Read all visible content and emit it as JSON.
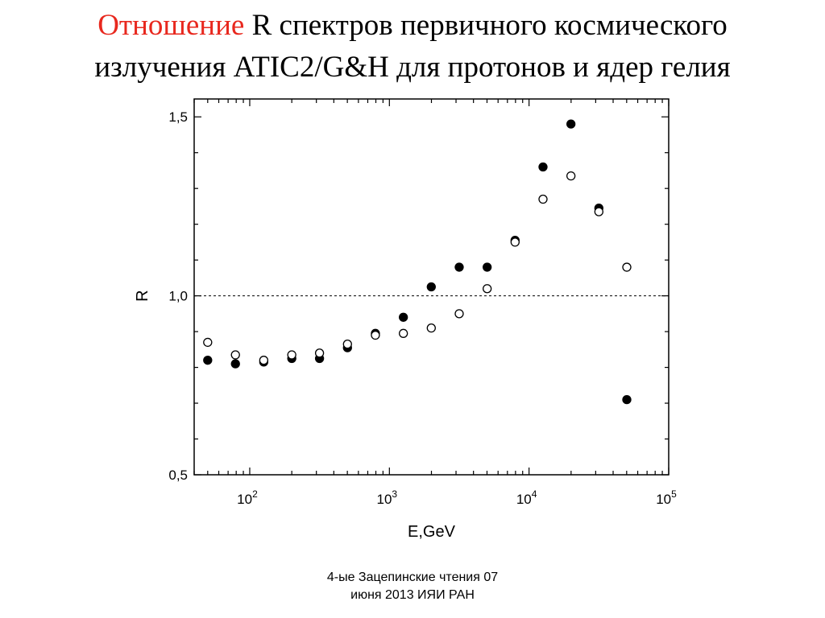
{
  "slide": {
    "title_highlight": "Отношение",
    "title_rest_line1": " R спектров первичного космического",
    "title_line2": "излучения ATIC2/G&H для протонов и ядер гелия",
    "highlight_color": "#e8281e",
    "footer_line1": "4-ые Зацепинские чтения 07",
    "footer_line2": "июня 2013 ИЯИ РАН"
  },
  "chart_data": {
    "type": "scatter",
    "xlabel": "E,GeV",
    "ylabel": "R",
    "x_scale": "log",
    "xlim": [
      40,
      100000
    ],
    "ylim": [
      0.5,
      1.55
    ],
    "x_ticks": [
      {
        "value": 100,
        "base": "10",
        "exp": "2"
      },
      {
        "value": 1000,
        "base": "10",
        "exp": "3"
      },
      {
        "value": 10000,
        "base": "10",
        "exp": "4"
      },
      {
        "value": 100000,
        "base": "10",
        "exp": "5"
      }
    ],
    "y_ticks": [
      {
        "value": 0.5,
        "label": "0,5"
      },
      {
        "value": 1.0,
        "label": "1,0"
      },
      {
        "value": 1.5,
        "label": "1,5"
      }
    ],
    "y_minor_step": 0.1,
    "reference_line": {
      "y": 1.0,
      "style": "dashed"
    },
    "grid": false,
    "series": [
      {
        "marker": "filled-circle",
        "points": [
          [
            50,
            0.82
          ],
          [
            79,
            0.81
          ],
          [
            126,
            0.815
          ],
          [
            200,
            0.825
          ],
          [
            316,
            0.825
          ],
          [
            501,
            0.855
          ],
          [
            794,
            0.895
          ],
          [
            1259,
            0.94
          ],
          [
            1995,
            1.025
          ],
          [
            3162,
            1.08
          ],
          [
            5012,
            1.08
          ],
          [
            7943,
            1.155
          ],
          [
            12589,
            1.36
          ],
          [
            19953,
            1.48
          ],
          [
            31623,
            1.245
          ],
          [
            50119,
            0.71
          ]
        ]
      },
      {
        "marker": "open-circle",
        "points": [
          [
            50,
            0.87
          ],
          [
            79,
            0.835
          ],
          [
            126,
            0.82
          ],
          [
            200,
            0.835
          ],
          [
            316,
            0.84
          ],
          [
            501,
            0.865
          ],
          [
            794,
            0.89
          ],
          [
            1259,
            0.895
          ],
          [
            1995,
            0.91
          ],
          [
            3162,
            0.95
          ],
          [
            5012,
            1.02
          ],
          [
            7943,
            1.15
          ],
          [
            12589,
            1.27
          ],
          [
            19953,
            1.335
          ],
          [
            31623,
            1.235
          ],
          [
            50119,
            1.08
          ]
        ]
      }
    ]
  }
}
